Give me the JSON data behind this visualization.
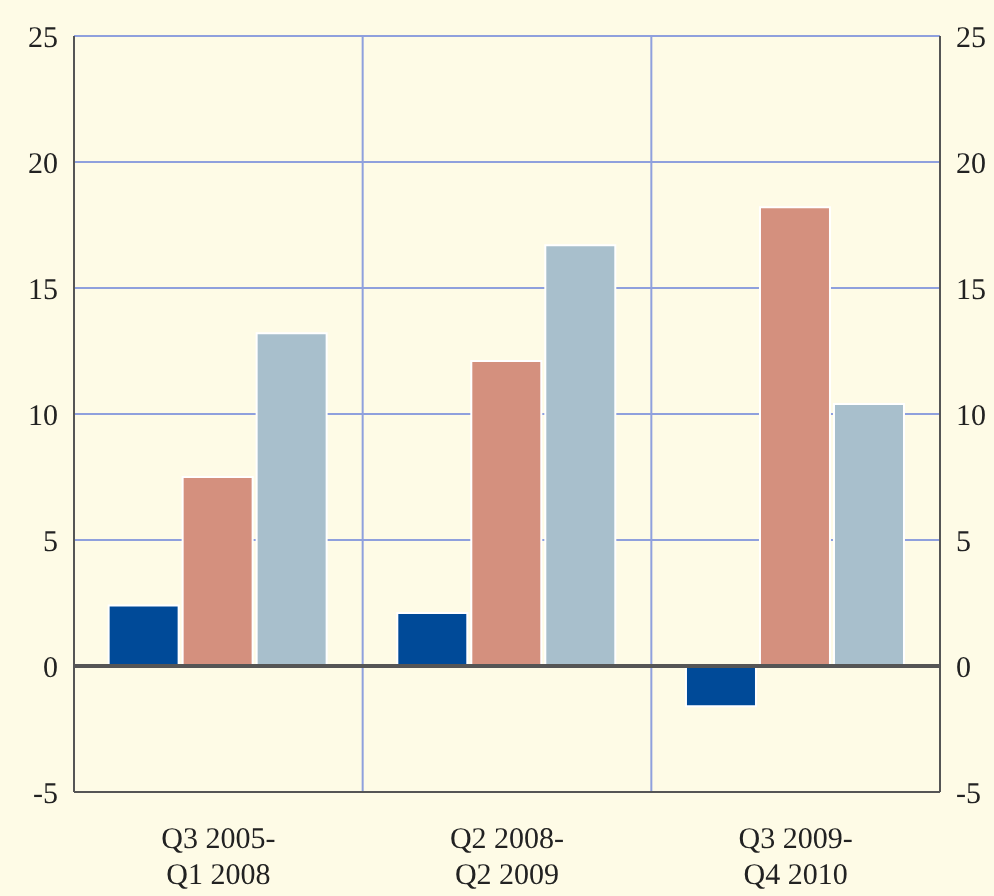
{
  "chart_data": {
    "type": "bar",
    "categories": [
      "Q3 2005- Q1 2008",
      "Q2 2008- Q2 2009",
      "Q3 2009- Q4 2010"
    ],
    "series": [
      {
        "color": "#004a98",
        "values": [
          2.4,
          2.1,
          -1.6
        ]
      },
      {
        "color": "#d4907e",
        "values": [
          7.5,
          12.1,
          18.2
        ]
      },
      {
        "color": "#a8bfcc",
        "values": [
          13.2,
          16.7,
          10.4
        ]
      }
    ],
    "ylim": [
      -5,
      25
    ],
    "yticks": [
      -5,
      0,
      5,
      10,
      15,
      20,
      25
    ],
    "y2lim": [
      -5,
      25
    ],
    "y2ticks": [
      -5,
      0,
      5,
      10,
      15,
      20,
      25
    ],
    "ref_lines": [
      {
        "axis": "y",
        "value": 0,
        "color": "#555555"
      }
    ],
    "grid": true,
    "legend": false
  }
}
